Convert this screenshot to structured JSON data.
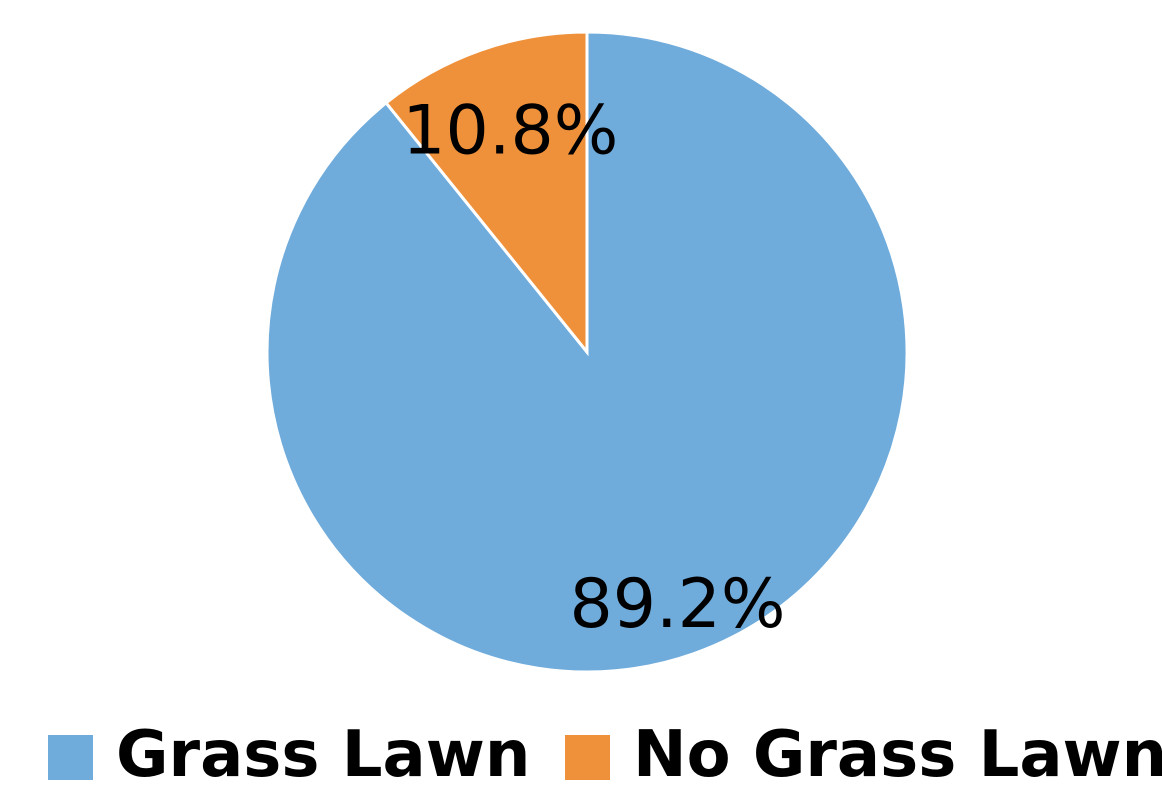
{
  "chart_data": {
    "type": "pie",
    "title": "",
    "categories": [
      "Grass Lawn",
      "No Grass Lawn"
    ],
    "values": [
      89.2,
      10.8
    ],
    "value_labels": [
      "89.2%",
      "10.8%"
    ],
    "colors": [
      "#6fabdb",
      "#ef913b"
    ],
    "start_angle_deg": 0,
    "direction": "clockwise",
    "legend_position": "bottom"
  },
  "legend": {
    "items": [
      {
        "label": "Grass Lawn",
        "color": "#6fabdb"
      },
      {
        "label": "No Grass Lawn",
        "color": "#ef913b"
      }
    ]
  }
}
